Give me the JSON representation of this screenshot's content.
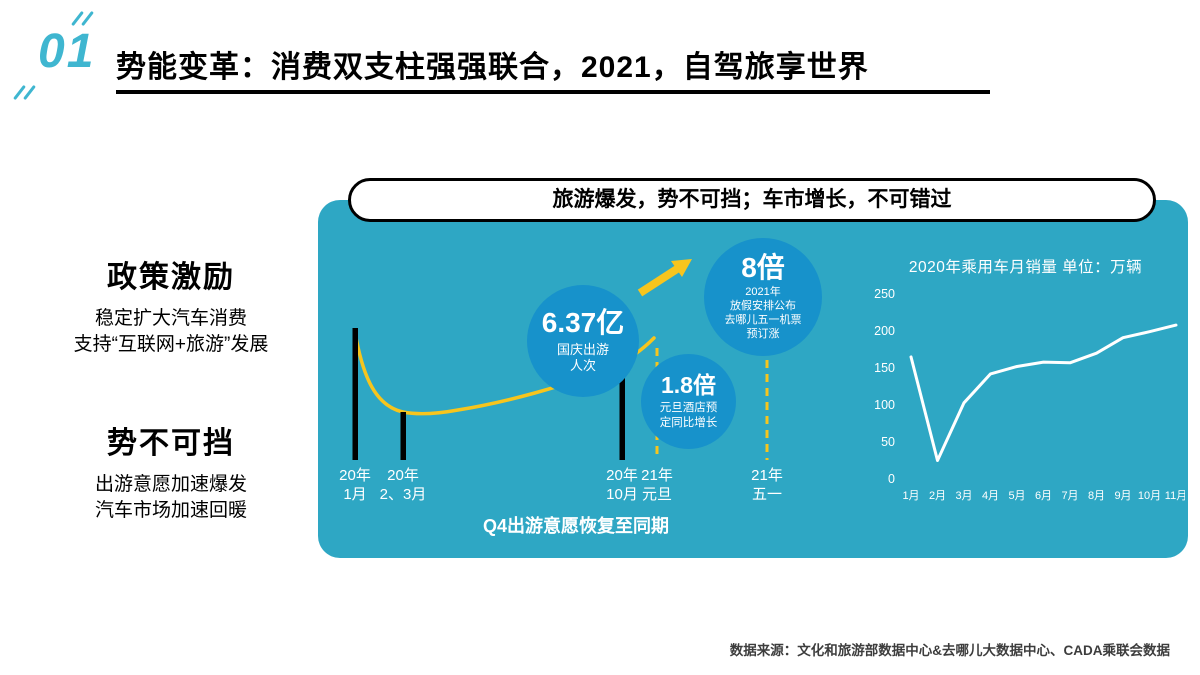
{
  "slide": {
    "page_number": "01",
    "title": "势能变革：消费双支柱强强联合，2021，自驾旅享世界",
    "source": "数据来源：文化和旅游部数据中心&去哪儿大数据中心、CADA乘联会数据"
  },
  "left_column": {
    "block1": {
      "heading": "政策激励",
      "line1": "稳定扩大汽车消费",
      "line2": "支持“互联网+旅游”发展"
    },
    "block2": {
      "heading": "势不可挡",
      "line1": "出游意愿加速爆发",
      "line2": "汽车市场加速回暖"
    }
  },
  "panel": {
    "banner": "旅游爆发，势不可挡；车市增长，不可错过",
    "caption": "Q4出游意愿恢复至同期",
    "colors": {
      "panel_bg": "#2EA7C4",
      "bubble_bg": "#1792CB",
      "accent_yellow": "#F7C51D",
      "accent_teal": "#3FB6D0"
    },
    "bubbles": [
      {
        "value": "6.37亿",
        "desc_lines": [
          "国庆出游",
          "人次"
        ]
      },
      {
        "value": "1.8倍",
        "desc_lines": [
          "元旦酒店预",
          "定同比增长"
        ]
      },
      {
        "value": "8倍",
        "desc_lines": [
          "2021年",
          "放假安排公布",
          "去哪儿五一机票",
          "预订涨"
        ]
      }
    ]
  },
  "chart_data": [
    {
      "type": "line",
      "name": "travel-intention-schematic",
      "title": "Q4出游意愿恢复至同期",
      "categories": [
        [
          "20年",
          "1月"
        ],
        [
          "20年",
          "2、3月"
        ],
        [
          "20年",
          "10月"
        ],
        [
          "21年",
          "元旦"
        ],
        [
          "21年",
          "五一"
        ]
      ],
      "annotations": [
        "6.37亿 国庆出游人次",
        "1.8倍 元旦酒店预定同比增长",
        "8倍 2021年放假安排公布去哪儿五一机票预订涨"
      ],
      "grid": false,
      "legend": false
    },
    {
      "type": "line",
      "name": "2020-passenger-car-monthly-sales",
      "title": "2020年乘用车月销量 单位：万辆",
      "categories": [
        "1月",
        "2月",
        "3月",
        "4月",
        "5月",
        "6月",
        "7月",
        "8月",
        "9月",
        "10月",
        "11月"
      ],
      "values": [
        165,
        25,
        103,
        142,
        152,
        158,
        157,
        170,
        191,
        199,
        208
      ],
      "ylim": [
        0,
        250
      ],
      "yticks": [
        0,
        50,
        100,
        150,
        200,
        250
      ],
      "grid": false,
      "legend": false
    }
  ]
}
